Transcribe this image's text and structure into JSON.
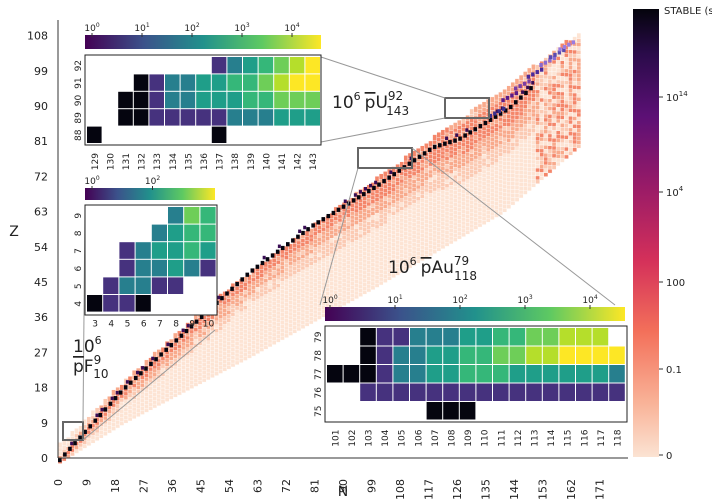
{
  "chart_data": [
    {
      "type": "heatmap",
      "description_role": "main nuclide chart",
      "xlabel": "N",
      "ylabel": "Z",
      "xticks": [
        "0",
        "9",
        "18",
        "27",
        "36",
        "45",
        "54",
        "63",
        "72",
        "81",
        "90",
        "99",
        "108",
        "117",
        "126",
        "135",
        "144",
        "153",
        "162",
        "171"
      ],
      "yticks": [
        "0",
        "9",
        "18",
        "27",
        "36",
        "45",
        "54",
        "63",
        "72",
        "81",
        "90",
        "99",
        "108"
      ],
      "xlim": [
        0,
        180
      ],
      "ylim": [
        0,
        112
      ],
      "stability_band": {
        "lower_edge": [
          [
            0,
            0
          ],
          [
            20,
            10
          ],
          [
            60,
            27
          ],
          [
            100,
            45
          ],
          [
            140,
            64
          ],
          [
            170,
            85
          ],
          [
            180,
            96
          ]
        ],
        "upper_edge": [
          [
            0,
            4
          ],
          [
            20,
            20
          ],
          [
            50,
            42
          ],
          [
            80,
            60
          ],
          [
            110,
            78
          ],
          [
            140,
            95
          ],
          [
            165,
            110
          ]
        ],
        "stable_line": [
          [
            0,
            0
          ],
          [
            20,
            18
          ],
          [
            40,
            33
          ],
          [
            60,
            48
          ],
          [
            80,
            60
          ],
          [
            100,
            70
          ],
          [
            118,
            80
          ],
          [
            126,
            82
          ],
          [
            142,
            90
          ],
          [
            150,
            96
          ]
        ]
      }
    },
    {
      "type": "colorbar",
      "title": "STABLE (s)",
      "tick_labels": [
        "STABLE (s)",
        "10^14",
        "10^4",
        "100",
        "0.1",
        "0"
      ],
      "colors": [
        "#fbe3d3",
        "#f9b398",
        "#f3705a",
        "#d4305a",
        "#9a1b67",
        "#5c1075",
        "#2a0b4a",
        "#04040c"
      ]
    },
    {
      "type": "heatmap",
      "inset": "U",
      "title": "10^6 pU 92/143",
      "xlabel": "N",
      "ylabel": "Z",
      "x": [
        "129",
        "130",
        "131",
        "132",
        "133",
        "134",
        "135",
        "136",
        "137",
        "138",
        "139",
        "140",
        "141",
        "142",
        "143"
      ],
      "y": [
        "88",
        "89",
        "90",
        "91",
        "92"
      ],
      "colorbar": {
        "scale": "log",
        "ticks": [
          "10^0",
          "10^1",
          "10^2",
          "10^3",
          "10^4"
        ]
      },
      "colors": [
        "#46327e",
        "#277f8e",
        "#1f9e89",
        "#35b779",
        "#6ece58",
        "#b5de2b",
        "#fde725"
      ],
      "cells_z92": [
        3,
        3,
        4,
        4,
        4,
        5,
        6
      ],
      "cells_z91": [
        1,
        1,
        2,
        2,
        3,
        3,
        4,
        4,
        5,
        5
      ],
      "cells_z90": [
        1,
        2,
        2,
        2,
        2,
        3,
        3,
        3,
        3,
        4,
        4,
        4
      ],
      "cells_z89": [
        1,
        1,
        1,
        1,
        1,
        2,
        2,
        2,
        3,
        3
      ]
    },
    {
      "type": "heatmap",
      "inset": "Au",
      "title": "10^6 pAu 79/118",
      "xlabel": "N",
      "ylabel": "Z",
      "x": [
        "101",
        "102",
        "103",
        "104",
        "105",
        "106",
        "107",
        "108",
        "109",
        "110",
        "111",
        "112",
        "113",
        "114",
        "115",
        "116",
        "117",
        "118"
      ],
      "y": [
        "75",
        "76",
        "77",
        "78",
        "79"
      ],
      "colorbar": {
        "scale": "log",
        "ticks": [
          "10^0",
          "10^1",
          "10^2",
          "10^3",
          "10^4"
        ]
      },
      "colors": [
        "#46327e",
        "#277f8e",
        "#1f9e89",
        "#35b779",
        "#6ece58",
        "#b5de2b",
        "#fde725"
      ]
    },
    {
      "type": "heatmap",
      "inset": "F",
      "title": "10^6 pF 9/10",
      "xlabel": "N",
      "ylabel": "Z",
      "x": [
        "3",
        "4",
        "5",
        "6",
        "7",
        "8",
        "9",
        "10"
      ],
      "y": [
        "4",
        "5",
        "6",
        "7",
        "8",
        "9"
      ],
      "colorbar": {
        "scale": "log",
        "ticks": [
          "10^0",
          "10^2"
        ]
      },
      "colors": [
        "#46327e",
        "#277f8e",
        "#1f9e89",
        "#35b779",
        "#6ece58",
        "#b5de2b",
        "#fde725"
      ]
    }
  ],
  "labels": {
    "main_x": "N",
    "main_y": "Z",
    "colorbar_title": "STABLE (s)",
    "cb_14": "10",
    "cb_14_exp": "14",
    "cb_4": "10",
    "cb_4_exp": "4",
    "cb_100": "100",
    "cb_01": "0.1",
    "cb_0": "0",
    "u_title_pre": "10",
    "u_title_exp": "6",
    "u_title_p": "p",
    "u_title_el": "U",
    "u_title_z": "92",
    "u_title_n": "143",
    "au_title_pre": "10",
    "au_title_exp": "6",
    "au_title_p": "p",
    "au_title_el": "Au",
    "au_title_z": "79",
    "au_title_n": "118",
    "f_title_pre": "10",
    "f_title_exp": "6",
    "f_title_p": "p",
    "f_title_el": "F",
    "f_title_z": "9",
    "f_title_n": "10",
    "u_cb": [
      [
        "10",
        "0"
      ],
      [
        "10",
        "1"
      ],
      [
        "10",
        "2"
      ],
      [
        "10",
        "3"
      ],
      [
        "10",
        "4"
      ]
    ],
    "au_cb": [
      [
        "10",
        "0"
      ],
      [
        "10",
        "1"
      ],
      [
        "10",
        "2"
      ],
      [
        "10",
        "3"
      ],
      [
        "10",
        "4"
      ]
    ],
    "f_cb": [
      [
        "10",
        "0"
      ],
      [
        "10",
        "2"
      ]
    ]
  }
}
